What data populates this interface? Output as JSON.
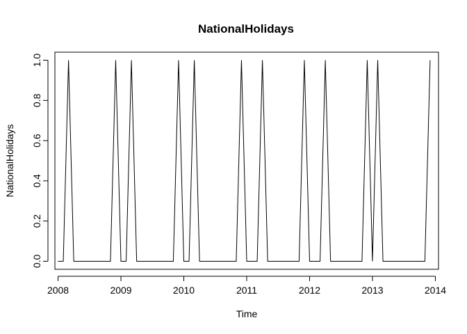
{
  "chart_data": {
    "type": "line",
    "title": "NationalHolidays",
    "xlabel": "Time",
    "ylabel": "NationalHolidays",
    "xlim": [
      2007.95,
      2014.05
    ],
    "ylim": [
      -0.04,
      1.04
    ],
    "x_ticks": [
      2008,
      2009,
      2010,
      2011,
      2012,
      2013,
      2014
    ],
    "x_tick_labels": [
      "2008",
      "2009",
      "2010",
      "2011",
      "2012",
      "2013",
      "2014"
    ],
    "y_ticks": [
      0.0,
      0.2,
      0.4,
      0.6,
      0.8,
      1.0
    ],
    "y_tick_labels": [
      "0.0",
      "0.2",
      "0.4",
      "0.6",
      "0.8",
      "1.0"
    ],
    "grid": false,
    "legend": "none",
    "line_color": "#000000",
    "frequency": 12,
    "start": [
      2008,
      1
    ],
    "series": [
      {
        "values": [
          0,
          0,
          1,
          0,
          0,
          0,
          0,
          0,
          0,
          0,
          0,
          1,
          0,
          0,
          1,
          0,
          0,
          0,
          0,
          0,
          0,
          0,
          0,
          1,
          0,
          0,
          1,
          0,
          0,
          0,
          0,
          0,
          0,
          0,
          0,
          1,
          0,
          0,
          0,
          1,
          0,
          0,
          0,
          0,
          0,
          0,
          0,
          1,
          0,
          0,
          0,
          1,
          0,
          0,
          0,
          0,
          0,
          0,
          0,
          1,
          0,
          1,
          0,
          0,
          0,
          0,
          0,
          0,
          0,
          0,
          0,
          1
        ]
      }
    ]
  }
}
